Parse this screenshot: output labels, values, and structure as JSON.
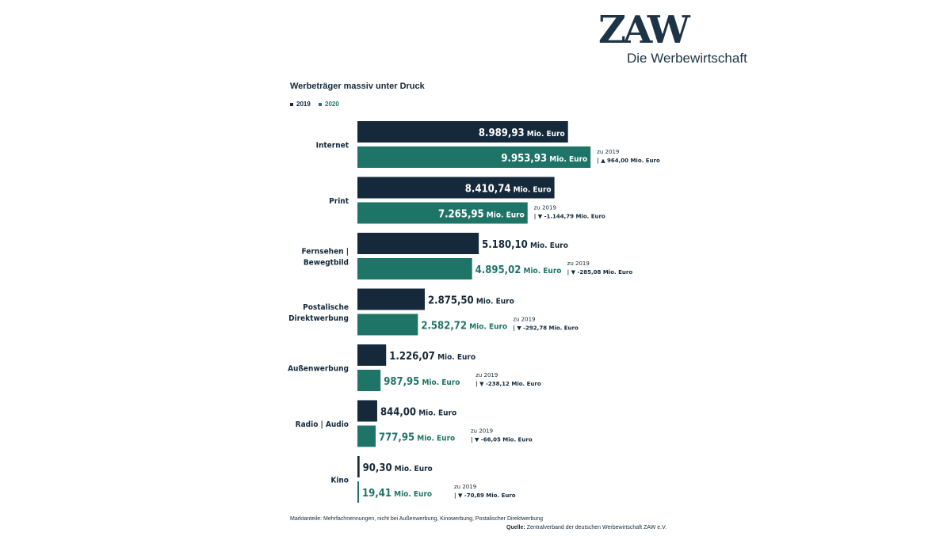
{
  "logo": {
    "mark": "ZAW",
    "subtitle": "Die Werbewirtschaft"
  },
  "title": "Werbeträger massiv unter Druck",
  "colors": {
    "y2019": "#15293a",
    "y2020": "#1f7468"
  },
  "footnote": "Marktanteile: Mehrfachnennungen, nicht bei Außenwerbung, Kinowerbung, Postalischer Direktwerbung",
  "source_label": "Quelle:",
  "source_text": "Zentralverband der deutschen Werbewirtschaft ZAW e.V.",
  "chart_data": {
    "type": "bar",
    "orientation": "horizontal",
    "unit": "Mio. Euro",
    "delta_prefix": "zu 2019",
    "series_names": [
      "2019",
      "2020"
    ],
    "categories": [
      {
        "label": "Internet",
        "v2019": 8989.93,
        "v2020": 9953.93,
        "t2019": "8.989,93",
        "t2020": "9.953,93",
        "delta": "964,00",
        "up": true
      },
      {
        "label": "Print",
        "v2019": 8410.74,
        "v2020": 7265.95,
        "t2019": "8.410,74",
        "t2020": "7.265,95",
        "delta": "-1.144,79",
        "up": false
      },
      {
        "label": "Fernsehen | Bewegtbild",
        "v2019": 5180.1,
        "v2020": 4895.02,
        "t2019": "5.180,10",
        "t2020": "4.895,02",
        "delta": "-285,08",
        "up": false
      },
      {
        "label": "Postalische Direktwerbung",
        "v2019": 2875.5,
        "v2020": 2582.72,
        "t2019": "2.875,50",
        "t2020": "2.582,72",
        "delta": "-292,78",
        "up": false
      },
      {
        "label": "Außenwerbung",
        "v2019": 1226.07,
        "v2020": 987.95,
        "t2019": "1.226,07",
        "t2020": "987,95",
        "delta": "-238,12",
        "up": false
      },
      {
        "label": "Radio | Audio",
        "v2019": 844.0,
        "v2020": 777.95,
        "t2019": "844,00",
        "t2020": "777,95",
        "delta": "-66,05",
        "up": false
      },
      {
        "label": "Kino",
        "v2019": 90.3,
        "v2020": 19.41,
        "t2019": "90,30",
        "t2020": "19,41",
        "delta": "-70,89",
        "up": false
      }
    ],
    "legend_position": "top-left",
    "grid": false
  }
}
